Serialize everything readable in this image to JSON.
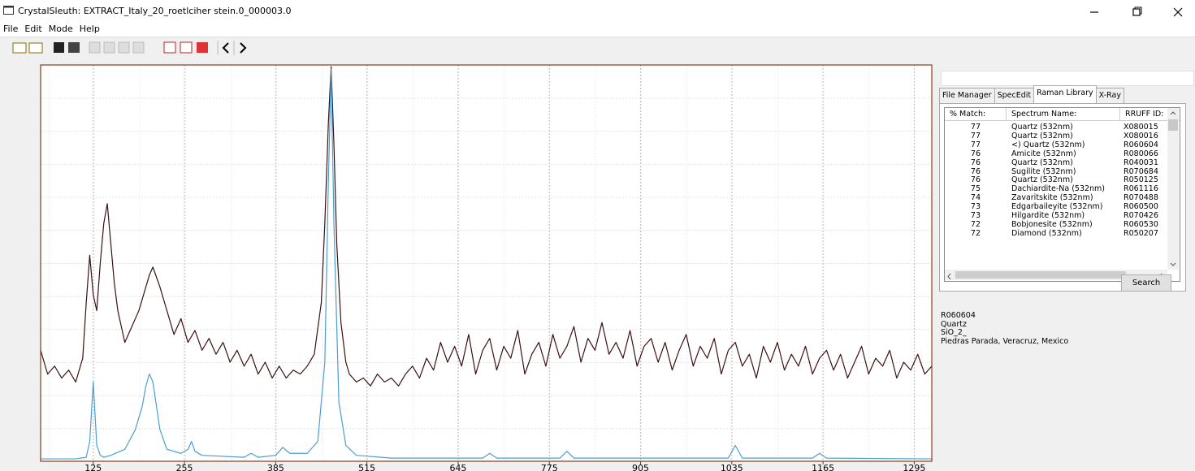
{
  "window": {
    "title": "CrystalSleuth: EXTRACT_Italy_20_roetlciher stein.0_000003.0"
  },
  "menu": [
    "File",
    "Edit",
    "Mode",
    "Help"
  ],
  "tabs": [
    "File Manager",
    "SpecEdit",
    "Raman Library",
    "X-Ray"
  ],
  "table": {
    "headers": [
      "% Match:",
      "Spectrum Name:",
      "RRUFF ID:"
    ],
    "rows": [
      [
        77,
        "Quartz  (532nm)",
        "X080015"
      ],
      [
        77,
        "Quartz  (532nm)",
        "X080016"
      ],
      [
        77,
        "<) Quartz  (532nm)",
        "R060604"
      ],
      [
        76,
        "Amicite  (532nm)",
        "R080066"
      ],
      [
        76,
        "Quartz  (532nm)",
        "R040031"
      ],
      [
        76,
        "Sugilite  (532nm)",
        "R070684"
      ],
      [
        76,
        "Quartz  (532nm)",
        "R050125"
      ],
      [
        75,
        "Dachiardite-Na  (532nm)",
        "R061116"
      ],
      [
        74,
        "Zavaritskite  (532nm)",
        "R070488"
      ],
      [
        73,
        "Edgarbaileyite  (532nm)",
        "R060500"
      ],
      [
        73,
        "Hilgardite  (532nm)",
        "R070426"
      ],
      [
        72,
        "Bobjonesite  (532nm)",
        "R060530"
      ],
      [
        72,
        "Diamond  (532nm)",
        "R050207"
      ]
    ]
  },
  "search_button": "Search",
  "details": [
    "R060604",
    "Quartz",
    "SiO_2_",
    "Piedras Parada, Veracruz, Mexico"
  ],
  "chart_data": {
    "type": "line",
    "xlim": [
      50,
      1320
    ],
    "ylim": [
      0,
      100
    ],
    "xticks": [
      125,
      255,
      385,
      515,
      645,
      775,
      905,
      1035,
      1165,
      1295
    ],
    "grid": true,
    "series": [
      {
        "color": "#3b1010",
        "x": [
          50,
          60,
          70,
          80,
          90,
          100,
          110,
          115,
          120,
          125,
          130,
          135,
          140,
          145,
          150,
          155,
          160,
          165,
          170,
          180,
          190,
          200,
          205,
          210,
          220,
          230,
          240,
          250,
          260,
          270,
          280,
          290,
          300,
          310,
          320,
          330,
          340,
          350,
          360,
          370,
          380,
          390,
          400,
          410,
          420,
          430,
          440,
          450,
          455,
          460,
          464,
          468,
          472,
          478,
          485,
          490,
          500,
          510,
          520,
          530,
          540,
          550,
          560,
          570,
          580,
          590,
          600,
          610,
          620,
          630,
          640,
          650,
          660,
          670,
          680,
          690,
          700,
          710,
          720,
          730,
          740,
          750,
          760,
          770,
          780,
          790,
          800,
          810,
          820,
          830,
          840,
          850,
          860,
          870,
          880,
          890,
          900,
          910,
          920,
          930,
          940,
          950,
          960,
          970,
          980,
          990,
          1000,
          1010,
          1020,
          1030,
          1040,
          1050,
          1060,
          1070,
          1080,
          1090,
          1100,
          1110,
          1120,
          1130,
          1140,
          1150,
          1160,
          1170,
          1180,
          1190,
          1200,
          1210,
          1220,
          1230,
          1240,
          1250,
          1260,
          1270,
          1280,
          1290,
          1300,
          1310,
          1320
        ],
        "values": [
          28,
          22,
          24,
          21,
          23,
          20,
          26,
          40,
          52,
          42,
          38,
          50,
          60,
          65,
          55,
          45,
          38,
          34,
          30,
          34,
          38,
          44,
          47,
          49,
          44,
          38,
          32,
          36,
          30,
          33,
          28,
          31,
          27,
          30,
          25,
          28,
          24,
          27,
          22,
          25,
          21,
          24,
          21,
          23,
          22,
          24,
          27,
          40,
          60,
          85,
          99.6,
          80,
          55,
          35,
          25,
          22,
          20,
          21,
          19,
          22,
          20,
          21,
          19,
          22,
          24,
          21,
          26,
          23,
          30,
          25,
          29,
          24,
          32,
          22,
          28,
          31,
          23,
          29,
          26,
          33,
          22,
          27,
          30,
          24,
          32,
          26,
          29,
          34,
          25,
          31,
          28,
          35,
          27,
          30,
          26,
          33,
          24,
          29,
          31,
          25,
          30,
          23,
          28,
          32,
          24,
          29,
          26,
          31,
          22,
          28,
          30,
          24,
          27,
          21,
          29,
          25,
          30,
          23,
          27,
          24,
          29,
          22,
          26,
          28,
          23,
          27,
          21,
          25,
          29,
          22,
          26,
          24,
          28,
          21,
          25,
          23,
          27,
          22,
          24
        ]
      },
      {
        "color": "#4a9fd2",
        "x": [
          50,
          100,
          115,
          120,
          125,
          130,
          135,
          140,
          150,
          170,
          185,
          195,
          200,
          205,
          210,
          215,
          220,
          230,
          250,
          260,
          265,
          270,
          280,
          340,
          350,
          360,
          385,
          395,
          405,
          430,
          445,
          455,
          460,
          464,
          468,
          475,
          485,
          500,
          550,
          680,
          690,
          700,
          790,
          800,
          810,
          1030,
          1040,
          1050,
          1150,
          1160,
          1170,
          1320
        ],
        "values": [
          0.6,
          0.6,
          1,
          5,
          20,
          4,
          1.5,
          1,
          1.5,
          3,
          8,
          14,
          19,
          22,
          20,
          14,
          8,
          3,
          2,
          3,
          5,
          2.5,
          1.5,
          1,
          2,
          1,
          1.5,
          3.5,
          2,
          2,
          5,
          25,
          70,
          99,
          60,
          15,
          4,
          1.5,
          0.8,
          0.8,
          2,
          0.8,
          0.8,
          2.5,
          0.8,
          0.8,
          4,
          0.8,
          0.8,
          2,
          0.8,
          0.6
        ]
      }
    ]
  }
}
